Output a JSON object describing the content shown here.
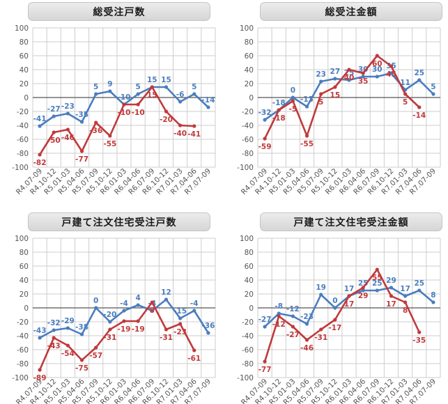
{
  "colors": {
    "blue": "#4a7dbf",
    "red": "#c0393b",
    "grid": "#cccccc",
    "axis": "#555555",
    "tick": "#555555"
  },
  "chart_data": [
    {
      "type": "line",
      "title": "総受注戸数",
      "categories": [
        "R4.07-09",
        "R4.10-12",
        "R5.01-03",
        "R5.04-06",
        "R5.07-09",
        "R5.10-12",
        "R6.01-03",
        "R6.04-06",
        "R6.07-09",
        "R6.10-12",
        "R7.01-03",
        "R7.04-06",
        "R7.07-09"
      ],
      "yticks": [
        100,
        80,
        60,
        40,
        20,
        0,
        -20,
        -40,
        -60,
        -80,
        -100
      ],
      "ylim": [
        -100,
        100
      ],
      "series": [
        {
          "color": "blue",
          "values": [
            -41,
            -27,
            -23,
            -35,
            5,
            9,
            -10,
            5,
            15,
            15,
            -6,
            5,
            -14
          ],
          "labels": [
            "-41",
            "-27",
            "-23",
            "-35",
            "5",
            "9",
            "-10",
            "5",
            "15",
            "15",
            "-6",
            "5",
            "-14"
          ]
        },
        {
          "color": "red",
          "values": [
            -82,
            -50,
            -46,
            -77,
            -36,
            -55,
            -10,
            -10,
            15,
            -20,
            -40,
            -41,
            null
          ],
          "labels": [
            "-82",
            "-50",
            "-46",
            "-77",
            "-36",
            "-55",
            "-10",
            "-10",
            "15",
            "-20",
            "-40",
            "-41",
            ""
          ]
        }
      ]
    },
    {
      "type": "line",
      "title": "総受注金額",
      "categories": [
        "R4.07-09",
        "R4.10-12",
        "R5.01-03",
        "R5.04-06",
        "R5.07-09",
        "R5.10-12",
        "R6.01-03",
        "R6.04-06",
        "R6.07-09",
        "R6.10-12",
        "R7.01-03",
        "R7.04-06",
        "R7.07-09"
      ],
      "yticks": [
        100,
        80,
        60,
        40,
        20,
        0,
        -20,
        -40,
        -60,
        -80,
        -100
      ],
      "ylim": [
        -100,
        100
      ],
      "series": [
        {
          "color": "blue",
          "values": [
            -32,
            -18,
            0,
            -13,
            23,
            27,
            25,
            30,
            30,
            35,
            11,
            25,
            5
          ],
          "labels": [
            "-32",
            "-18",
            "0",
            "-13",
            "23",
            "27",
            "25",
            "30",
            "30",
            "35",
            "11",
            "25",
            "5"
          ]
        },
        {
          "color": "red",
          "values": [
            -59,
            -18,
            -5,
            -55,
            5,
            15,
            40,
            35,
            60,
            45,
            5,
            -14,
            null
          ],
          "labels": [
            "-59",
            "-18",
            "-5",
            "-55",
            "5",
            "15",
            "40",
            "35",
            "60",
            "45",
            "5",
            "-14",
            ""
          ]
        }
      ]
    },
    {
      "type": "line",
      "title": "戸建て注文住宅受注戸数",
      "categories": [
        "R4.07-09",
        "R4.10-12",
        "R5.01-03",
        "R5.04-06",
        "R5.07-09",
        "R5.10-12",
        "R6.01-03",
        "R6.04-06",
        "R6.07-09",
        "R6.10-12",
        "R7.01-03",
        "R7.04-06",
        "R7.07-09"
      ],
      "yticks": [
        100,
        80,
        60,
        40,
        20,
        0,
        -20,
        -40,
        -60,
        -80,
        -100
      ],
      "ylim": [
        -100,
        100
      ],
      "series": [
        {
          "color": "blue",
          "values": [
            -43,
            -32,
            -29,
            -38,
            0,
            -20,
            -4,
            4,
            -4,
            12,
            -15,
            -4,
            -36
          ],
          "labels": [
            "-43",
            "-32",
            "-29",
            "-38",
            "0",
            "-20",
            "-4",
            "4",
            "-4",
            "12",
            "-15",
            "-4",
            "-36"
          ]
        },
        {
          "color": "red",
          "values": [
            -89,
            -43,
            -54,
            -75,
            -57,
            -31,
            -19,
            -19,
            8,
            -31,
            -23,
            -61,
            null
          ],
          "labels": [
            "-89",
            "-43",
            "-54",
            "-75",
            "-57",
            "-31",
            "-19",
            "-19",
            "8",
            "-31",
            "-23",
            "-61",
            ""
          ]
        }
      ]
    },
    {
      "type": "line",
      "title": "戸建て注文住宅受注金額",
      "categories": [
        "R4.07-09",
        "R4.10-12",
        "R5.01-03",
        "R5.04-06",
        "R5.07-09",
        "R5.10-12",
        "R6.01-03",
        "R6.04-06",
        "R6.07-09",
        "R6.10-12",
        "R7.01-03",
        "R7.04-06",
        "R7.07-09"
      ],
      "yticks": [
        100,
        80,
        60,
        40,
        20,
        0,
        -20,
        -40,
        -60,
        -80,
        -100
      ],
      "ylim": [
        -100,
        100
      ],
      "series": [
        {
          "color": "blue",
          "values": [
            -27,
            -8,
            -12,
            -23,
            19,
            0,
            17,
            25,
            25,
            29,
            17,
            25,
            8
          ],
          "labels": [
            "-27",
            "-8",
            "-12",
            "-23",
            "19",
            "0",
            "17",
            "25",
            "25",
            "29",
            "17",
            "25",
            "8"
          ]
        },
        {
          "color": "red",
          "values": [
            -77,
            -12,
            -27,
            -46,
            -31,
            -17,
            17,
            29,
            55,
            17,
            8,
            -35,
            null
          ],
          "labels": [
            "-77",
            "-12",
            "-27",
            "-46",
            "-31",
            "-17",
            "17",
            "29",
            "55",
            "17",
            "8",
            "-35",
            ""
          ]
        }
      ]
    }
  ]
}
